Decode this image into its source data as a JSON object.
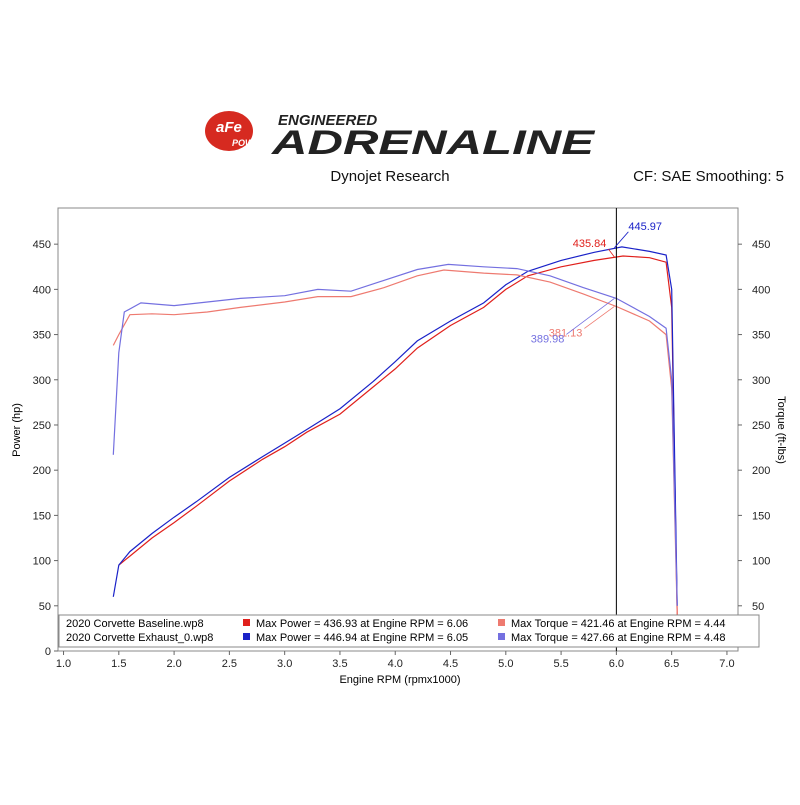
{
  "chart_data": {
    "type": "line",
    "brand_small": "aFe",
    "brand_power": "POWER",
    "brand_top": "ENGINEERED",
    "title": "ADRENALINE",
    "subtitle": "Dynojet Research",
    "settings_note": "CF: SAE Smoothing: 5",
    "x_label": "Engine RPM (rpmx1000)",
    "y_label": "Power (hp)",
    "y2_label": "Torque (ft-lbs)",
    "xlim": [
      0.95,
      7.1
    ],
    "ylim": [
      0,
      490
    ],
    "y2lim": [
      0,
      490
    ],
    "xticks": [
      {
        "value": 1,
        "label": "1.0"
      },
      1.5,
      {
        "value": 2,
        "label": "2.0"
      },
      2.5,
      {
        "value": 3,
        "label": "3.0"
      },
      3.5,
      {
        "value": 4,
        "label": "4.0"
      },
      4.5,
      {
        "value": 5,
        "label": "5.0"
      },
      5.5,
      {
        "value": 6,
        "label": "6.0"
      },
      6.5,
      {
        "value": 7,
        "label": "7.0"
      }
    ],
    "yticks": [
      0,
      50,
      100,
      150,
      200,
      250,
      300,
      350,
      400,
      450
    ],
    "y2ticks": [
      50,
      100,
      150,
      200,
      250,
      300,
      350,
      400,
      450
    ],
    "cursor_x": 6.0,
    "runs": [
      "2020 Corvette Baseline.wp8",
      "2020 Corvette Exhaust_0.wp8"
    ],
    "series": [
      {
        "name": "Max Power = 436.93 at Engine RPM = 6.06",
        "color": "#e0201c",
        "cursor_value": 435.84,
        "x": [
          1.5,
          1.6,
          1.8,
          2.0,
          2.2,
          2.5,
          2.8,
          3.0,
          3.2,
          3.5,
          3.8,
          4.0,
          4.2,
          4.5,
          4.8,
          5.0,
          5.2,
          5.5,
          5.8,
          6.06,
          6.3,
          6.45,
          6.5,
          6.55
        ],
        "values": [
          95,
          105,
          125,
          142,
          160,
          188,
          212,
          226,
          242,
          262,
          292,
          312,
          335,
          360,
          380,
          400,
          415,
          425,
          432,
          436.93,
          435,
          430,
          380,
          40
        ]
      },
      {
        "name": "Max Power = 446.94 at Engine RPM = 6.05",
        "color": "#1a22c8",
        "cursor_value": 445.97,
        "x": [
          1.45,
          1.5,
          1.6,
          1.8,
          2.0,
          2.2,
          2.5,
          2.8,
          3.0,
          3.2,
          3.5,
          3.8,
          4.0,
          4.2,
          4.5,
          4.8,
          5.0,
          5.2,
          5.5,
          5.8,
          6.05,
          6.3,
          6.45,
          6.5,
          6.55
        ],
        "values": [
          60,
          95,
          110,
          130,
          148,
          165,
          192,
          215,
          230,
          245,
          268,
          298,
          320,
          343,
          365,
          385,
          405,
          420,
          432,
          441,
          446.94,
          442,
          438,
          400,
          50
        ]
      },
      {
        "name": "Max Torque = 421.46 at Engine RPM = 4.44",
        "color": "#ee7a70",
        "axis": "y2",
        "cursor_value": 381.13,
        "x": [
          1.45,
          1.5,
          1.6,
          1.8,
          2.0,
          2.3,
          2.6,
          3.0,
          3.3,
          3.6,
          3.9,
          4.2,
          4.44,
          4.8,
          5.1,
          5.4,
          5.7,
          6.0,
          6.3,
          6.45,
          6.5,
          6.55
        ],
        "values": [
          338,
          350,
          372,
          373,
          372,
          375,
          380,
          386,
          392,
          392,
          402,
          415,
          421.46,
          418,
          416,
          408,
          395,
          381,
          365,
          350,
          290,
          40
        ]
      },
      {
        "name": "Max Torque = 427.66 at Engine RPM = 4.48",
        "color": "#7470e0",
        "axis": "y2",
        "cursor_value": 389.98,
        "x": [
          1.45,
          1.5,
          1.55,
          1.7,
          2.0,
          2.3,
          2.6,
          3.0,
          3.3,
          3.6,
          3.9,
          4.2,
          4.48,
          4.8,
          5.1,
          5.4,
          5.7,
          6.0,
          6.3,
          6.45,
          6.5,
          6.55
        ],
        "values": [
          217,
          330,
          375,
          385,
          382,
          386,
          390,
          393,
          400,
          398,
          410,
          422,
          427.66,
          425,
          423,
          415,
          402,
          390,
          370,
          357,
          300,
          50
        ]
      }
    ]
  }
}
